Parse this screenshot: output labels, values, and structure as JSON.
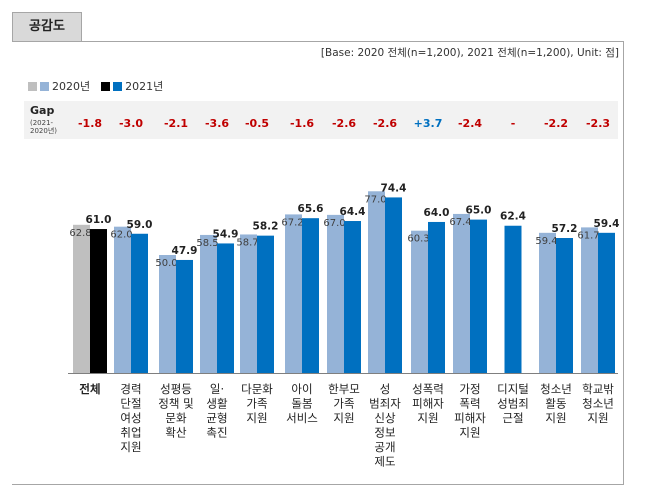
{
  "tab_title": "공감도",
  "base_note": "[Base: 2020 전체(n=1,200), 2021 전체(n=1,200), Unit: 점]",
  "legend": {
    "y2020": "2020년",
    "y2021": "2021년"
  },
  "gap_title": "Gap",
  "gap_subtitle_1": "(2021-",
  "gap_subtitle_2": "2020년)",
  "colors": {
    "total_2020": "#bfbfbf",
    "total_2021": "#000000",
    "y2020": "#95b3d7",
    "y2021": "#0070c0",
    "legend_gray": "#bfbfbf",
    "gap_negative": "#c00000",
    "gap_positive": "#0070c0"
  },
  "chart_data": {
    "type": "bar",
    "categories": [
      [
        "전체"
      ],
      [
        "경력",
        "단절",
        "여성",
        "취업",
        "지원"
      ],
      [
        "성평등",
        "정책 및",
        "문화",
        "확산"
      ],
      [
        "일·",
        "생활",
        "균형",
        "촉진"
      ],
      [
        "다문화",
        "가족",
        "지원"
      ],
      [
        "아이",
        "돌봄",
        "서비스"
      ],
      [
        "한부모",
        "가족",
        "지원"
      ],
      [
        "성",
        "범죄자",
        "신상",
        "정보",
        "공개",
        "제도"
      ],
      [
        "성폭력",
        "피해자",
        "지원"
      ],
      [
        "가정",
        "폭력",
        "피해자",
        "지원"
      ],
      [
        "디지털",
        "성범죄",
        "근절"
      ],
      [
        "청소년",
        "활동",
        "지원"
      ],
      [
        "학교밖",
        "청소년",
        "지원"
      ]
    ],
    "series": [
      {
        "name": "2020년",
        "values": [
          62.8,
          62.0,
          50.0,
          58.5,
          58.7,
          67.2,
          67.0,
          77.0,
          60.3,
          67.4,
          null,
          59.4,
          61.7
        ]
      },
      {
        "name": "2021년",
        "values": [
          61.0,
          59.0,
          47.9,
          54.9,
          58.2,
          65.6,
          64.4,
          74.4,
          64.0,
          65.0,
          62.4,
          57.2,
          59.4
        ]
      }
    ],
    "gap": [
      "-1.8",
      "-3.0",
      "-2.1",
      "-3.6",
      "-0.5",
      "-1.6",
      "-2.6",
      "-2.6",
      "+3.7",
      "-2.4",
      "-",
      "-2.2",
      "-2.3"
    ],
    "ylim": [
      0,
      80
    ],
    "xlabel": "",
    "ylabel": ""
  }
}
